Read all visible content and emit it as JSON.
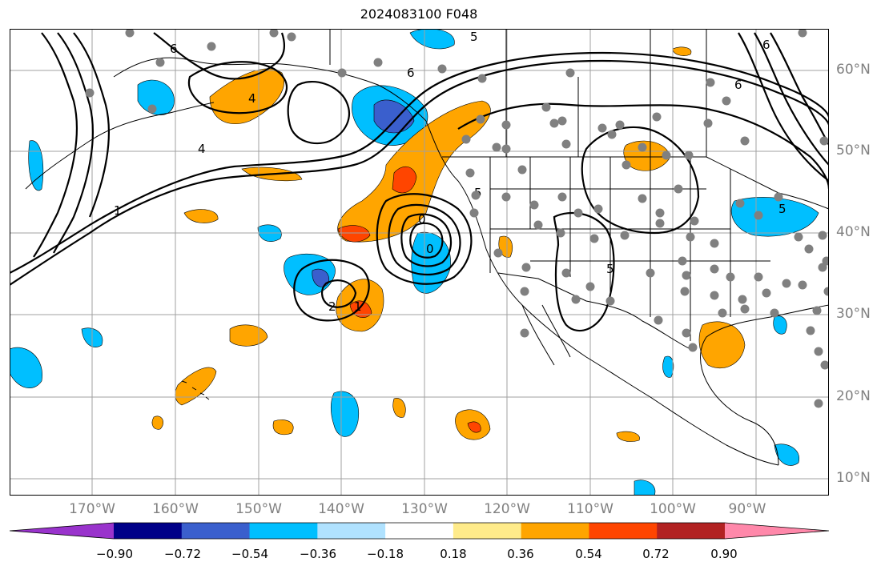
{
  "title": "2024083100 F048",
  "lat_labels": [
    "60°N",
    "50°N",
    "40°N",
    "30°N",
    "20°N",
    "10°N"
  ],
  "lon_labels": [
    "170°W",
    "160°W",
    "150°W",
    "140°W",
    "130°W",
    "120°W",
    "110°W",
    "100°W",
    "90°W"
  ],
  "colorbar": {
    "ticks": [
      "−0.90",
      "−0.72",
      "−0.54",
      "−0.36",
      "−0.18",
      "0.18",
      "0.36",
      "0.54",
      "0.72",
      "0.90"
    ],
    "colors": [
      "#9933cc",
      "#000088",
      "#3a5fcd",
      "#00bfff",
      "#b0e2ff",
      "#ffffff",
      "#ffeb8a",
      "#ffa500",
      "#ff4500",
      "#b22222",
      "#ff88aa"
    ]
  },
  "contour_labels": [
    "6",
    "4",
    "4",
    "1",
    "2",
    "1",
    "0",
    "6",
    "6",
    "5",
    "5",
    "0",
    "6",
    "5",
    "5"
  ],
  "palette": {
    "land_outline": "#000000",
    "grid": "#a0a0a0",
    "station": "#808080"
  }
}
